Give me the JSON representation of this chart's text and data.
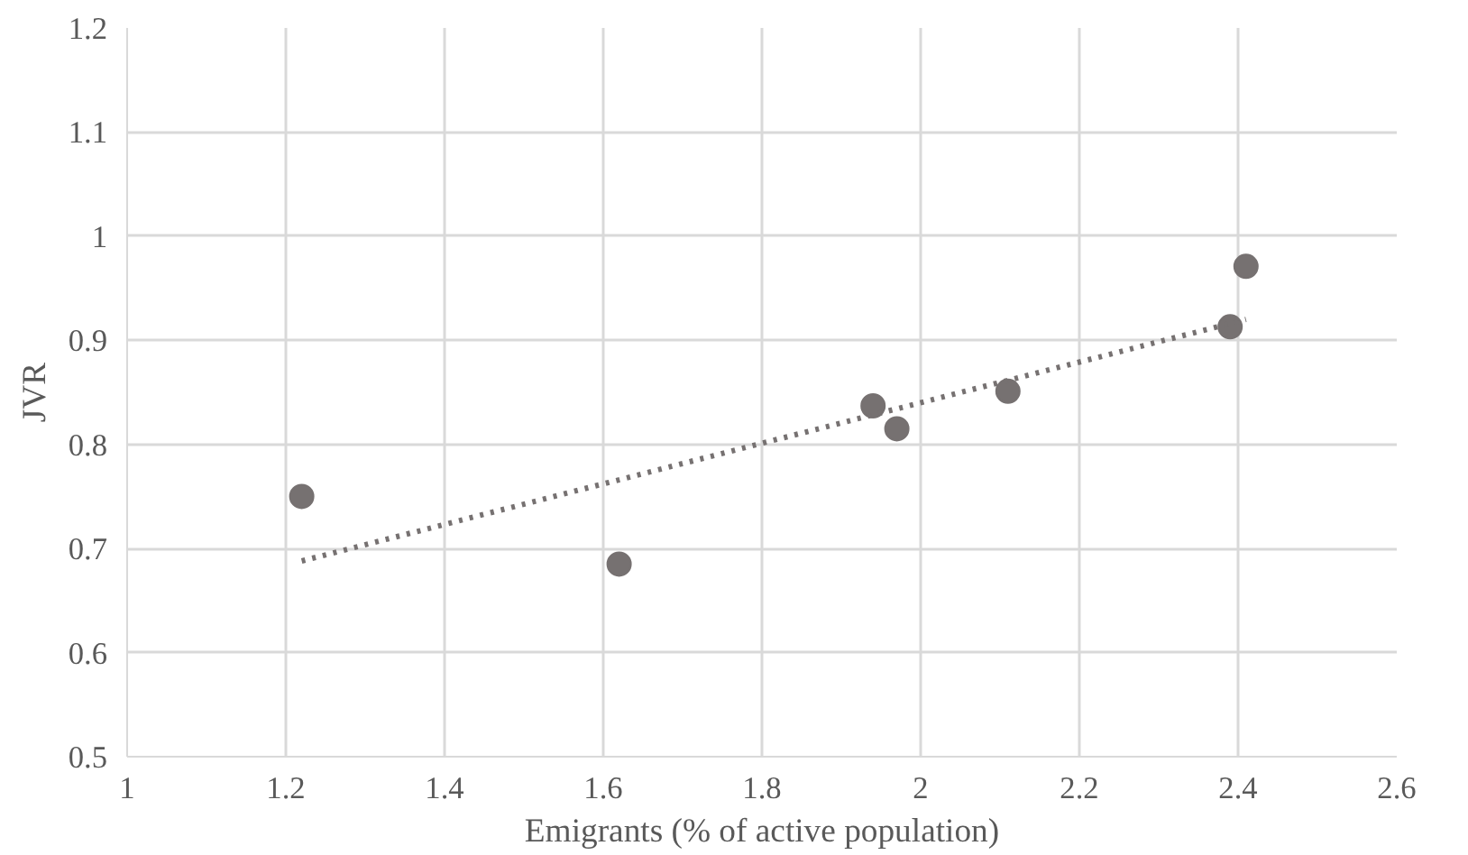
{
  "chart_data": {
    "type": "scatter",
    "xlabel": "Emigrants (% of active population)",
    "ylabel": "JVR",
    "series": [
      {
        "color": "#767171",
        "x": [
          1.22,
          1.62,
          1.94,
          1.97,
          2.11,
          2.39,
          2.41
        ],
        "values": [
          0.75,
          0.685,
          0.837,
          0.815,
          0.851,
          0.913,
          0.971
        ]
      },
      {
        "type": "line",
        "color": "#767171",
        "line_style": "dotted",
        "marker": "none",
        "x": [
          1.22,
          2.41
        ],
        "values": [
          0.688,
          0.92
        ]
      }
    ],
    "xlim": [
      1,
      2.6
    ],
    "xticks": [
      1,
      1.2,
      1.4,
      1.6,
      1.8,
      2,
      2.2,
      2.4,
      2.6
    ],
    "ylim": [
      0.5,
      1.2
    ],
    "yticks": [
      0.5,
      0.6,
      0.7,
      0.8,
      0.9,
      1,
      1.1,
      1.2
    ],
    "grid": true,
    "marker": "circle"
  }
}
